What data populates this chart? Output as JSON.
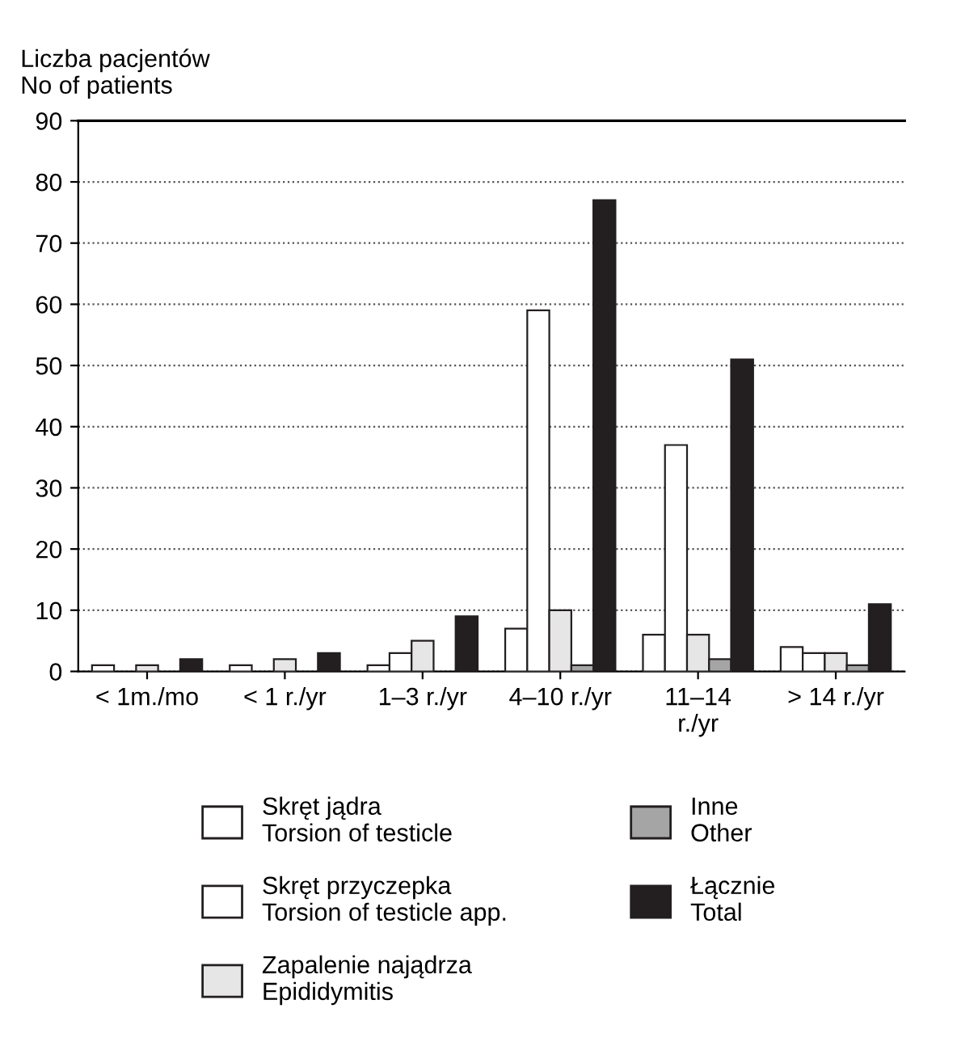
{
  "chart_data": {
    "type": "bar",
    "ylabel": "Liczba pacjentów\nNo of patients",
    "categories": [
      "< 1m./mo",
      "< 1 r./yr",
      "1–3 r./yr",
      "4–10 r./yr",
      "11–14\nr./yr",
      "> 14 r./yr"
    ],
    "series": [
      {
        "name": "Skręt jądra\nTorsion of testicle",
        "color": "#ffffff",
        "values": [
          1,
          1,
          1,
          7,
          6,
          4
        ]
      },
      {
        "name": "Skręt przyczepka\nTorsion of testicle app.",
        "color": "#ffffff",
        "values": [
          null,
          null,
          3,
          59,
          37,
          3
        ]
      },
      {
        "name": "Zapalenie najądrza\nEpididymitis",
        "color": "#e6e6e6",
        "values": [
          1,
          2,
          5,
          10,
          6,
          3
        ]
      },
      {
        "name": "Inne\nOther",
        "color": "#a5a5a5",
        "values": [
          null,
          null,
          null,
          1,
          2,
          1
        ]
      },
      {
        "name": "Łącznie\nTotal",
        "color": "#231f20",
        "values": [
          2,
          3,
          9,
          77,
          51,
          11
        ]
      }
    ],
    "ylim": [
      0,
      90
    ],
    "yticks": [
      0,
      10,
      20,
      30,
      40,
      50,
      60,
      70,
      80,
      90
    ],
    "grid": "y",
    "legend": "bottom"
  }
}
